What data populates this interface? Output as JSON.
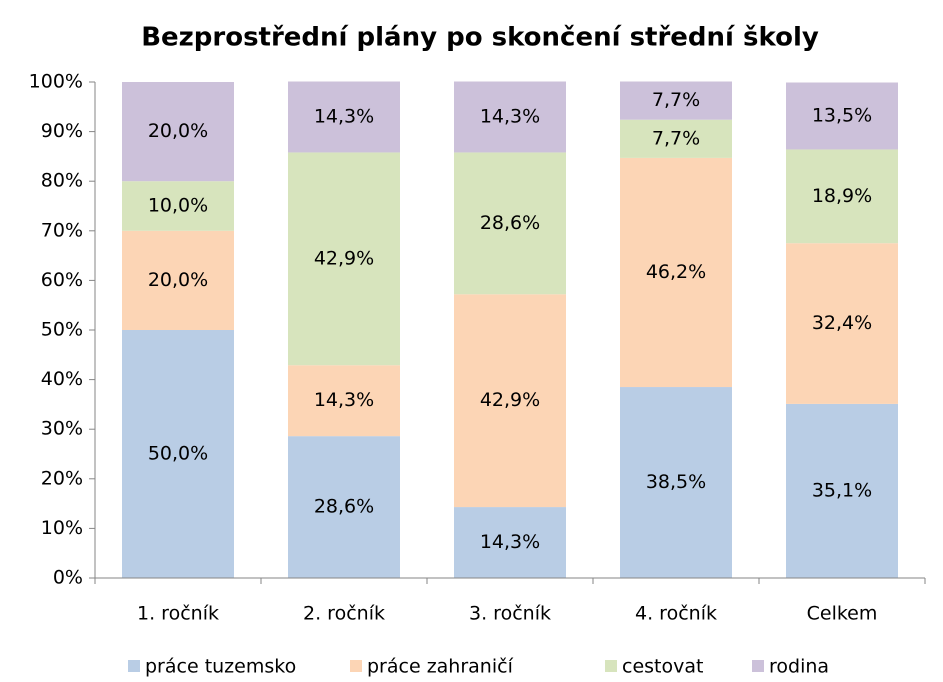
{
  "chart_data": {
    "type": "stacked_bar",
    "title": "Bezprostřední plány po skončení střední školy",
    "categories": [
      "1. ročník",
      "2. ročník",
      "3. ročník",
      "4. ročník",
      "Celkem"
    ],
    "series": [
      {
        "name": "práce tuzemsko",
        "color": "#b9cde5",
        "values": [
          50.0,
          28.6,
          14.3,
          38.5,
          35.1
        ],
        "value_labels": [
          "50,0%",
          "28,6%",
          "14,3%",
          "38,5%",
          "35,1%"
        ]
      },
      {
        "name": "práce zahraničí",
        "color": "#fcd5b5",
        "values": [
          20.0,
          14.3,
          42.9,
          46.2,
          32.4
        ],
        "value_labels": [
          "20,0%",
          "14,3%",
          "42,9%",
          "46,2%",
          "32,4%"
        ]
      },
      {
        "name": "cestovat",
        "color": "#d7e4bd",
        "values": [
          10.0,
          42.9,
          28.6,
          7.7,
          18.9
        ],
        "value_labels": [
          "10,0%",
          "42,9%",
          "28,6%",
          "7,7%",
          "18,9%"
        ]
      },
      {
        "name": "rodina",
        "color": "#ccc1da",
        "values": [
          20.0,
          14.3,
          14.3,
          7.7,
          13.5
        ],
        "value_labels": [
          "20,0%",
          "14,3%",
          "14,3%",
          "7,7%",
          "13,5%"
        ]
      }
    ],
    "ylim": [
      0,
      100
    ],
    "yticks": [
      {
        "value": 0,
        "label": "0%"
      },
      {
        "value": 10,
        "label": "10%"
      },
      {
        "value": 20,
        "label": "20%"
      },
      {
        "value": 30,
        "label": "30%"
      },
      {
        "value": 40,
        "label": "40%"
      },
      {
        "value": 50,
        "label": "50%"
      },
      {
        "value": 60,
        "label": "60%"
      },
      {
        "value": 70,
        "label": "70%"
      },
      {
        "value": 80,
        "label": "80%"
      },
      {
        "value": 90,
        "label": "90%"
      },
      {
        "value": 100,
        "label": "100%"
      }
    ],
    "legend": "bottom"
  }
}
